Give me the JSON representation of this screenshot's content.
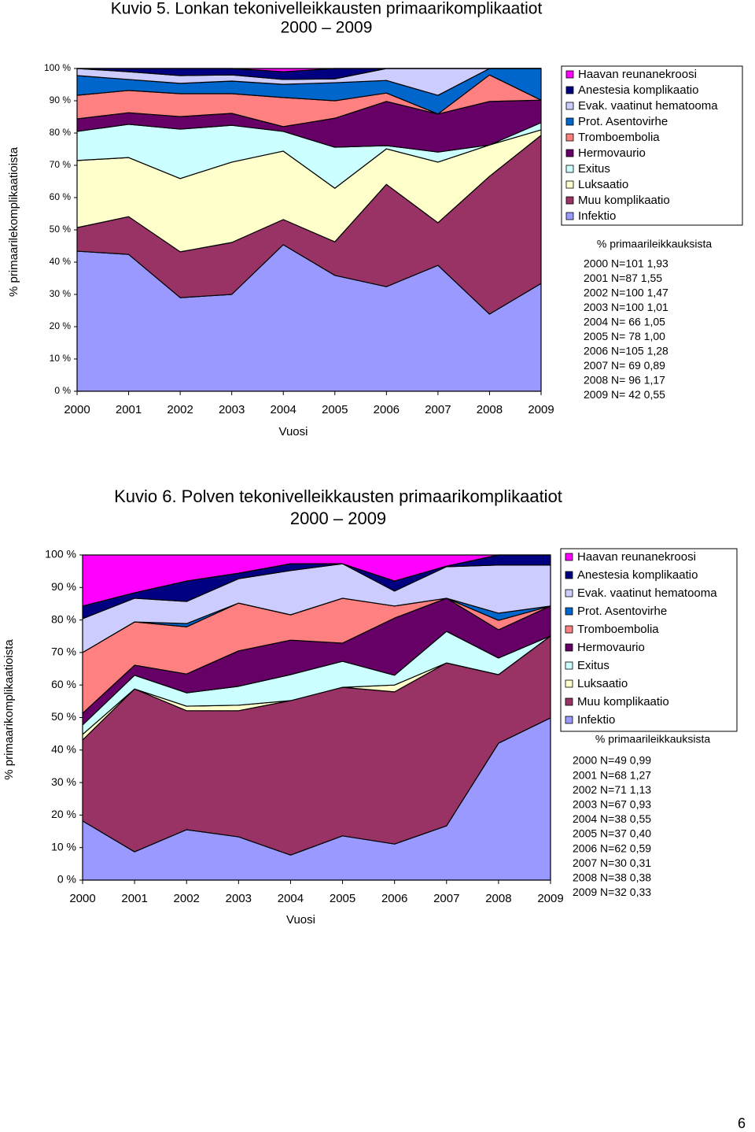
{
  "chart_data": [
    {
      "type": "stacked-area",
      "title": "Kuvio 5. Lonkan tekonivelleikkausten primaarikomplikaatiot",
      "subtitle": "2000 – 2009",
      "x_label": "Vuosi",
      "y_label": "% primaarilekomplikaatioista",
      "categories": [
        "2000",
        "2001",
        "2002",
        "2003",
        "2004",
        "2005",
        "2006",
        "2007",
        "2008",
        "2009"
      ],
      "ylim": [
        0,
        100
      ],
      "yticks": [
        {
          "value": 0,
          "label": "0 %"
        },
        {
          "value": 10,
          "label": "10 %"
        },
        {
          "value": 20,
          "label": "20 %"
        },
        {
          "value": 30,
          "label": "30 %"
        },
        {
          "value": 40,
          "label": "40 %"
        },
        {
          "value": 50,
          "label": "50 %"
        },
        {
          "value": 60,
          "label": "60 %"
        },
        {
          "value": 70,
          "label": "70 %"
        },
        {
          "value": 80,
          "label": "80 %"
        },
        {
          "value": 90,
          "label": "90 %"
        },
        {
          "value": 100,
          "label": "100 %"
        }
      ],
      "legend": "right",
      "series": [
        {
          "name": "Haavan reunanekroosi",
          "color": "#ff00ff",
          "values": [
            0,
            0,
            0,
            0,
            1.0,
            0,
            0,
            0,
            0,
            0
          ]
        },
        {
          "name": "Anestesia komplikaatio",
          "color": "#000080",
          "values": [
            0,
            1.0,
            2.2,
            2.0,
            2.4,
            3.2,
            0,
            0,
            0,
            0
          ]
        },
        {
          "name": "Evak. vaatinut hematooma",
          "color": "#ccccff",
          "values": [
            2.2,
            2.4,
            2.4,
            1.9,
            1.5,
            1.2,
            3.7,
            8.3,
            0,
            0
          ]
        },
        {
          "name": "Prot. Asentovirhe",
          "color": "#0066cc",
          "values": [
            6.1,
            3.4,
            3.2,
            3.9,
            4.1,
            5.6,
            3.9,
            5.8,
            2.0,
            9.8
          ]
        },
        {
          "name": "Tromboembolia",
          "color": "#ff8080",
          "values": [
            7.3,
            6.9,
            7.1,
            6.1,
            9.0,
            5.4,
            2.6,
            0,
            8.2,
            0
          ]
        },
        {
          "name": "Hermovaurio",
          "color": "#660066",
          "values": [
            3.9,
            3.6,
            3.9,
            3.7,
            1.5,
            9.0,
            13.7,
            11.8,
            13.5,
            7.0
          ]
        },
        {
          "name": "Exitus",
          "color": "#ccffff",
          "values": [
            9.0,
            10.3,
            15.3,
            11.4,
            6.1,
            12.7,
            1.0,
            3.1,
            0,
            2.2
          ]
        },
        {
          "name": "Luksaatio",
          "color": "#ffffcc",
          "values": [
            20.8,
            18.3,
            22.7,
            24.9,
            21.2,
            16.6,
            11.0,
            18.8,
            9.7,
            1.7
          ]
        },
        {
          "name": "Muu komplikaatio",
          "color": "#993366",
          "values": [
            7.3,
            11.7,
            14.2,
            16.1,
            7.8,
            10.4,
            31.7,
            13.2,
            42.7,
            45.9
          ]
        },
        {
          "name": "Infektio",
          "color": "#9999ff",
          "values": [
            43.4,
            42.4,
            29.0,
            30.0,
            45.4,
            35.9,
            32.4,
            39.0,
            23.9,
            33.4
          ]
        }
      ],
      "notes_title": "% primaarileikkauksista",
      "notes": [
        "2000 N=101 1,93",
        "2001 N=87 1,55",
        "2002 N=100 1,47",
        "2003 N=100 1,01",
        "2004 N= 66 1,05",
        "2005 N= 78 1,00",
        "2006 N=105 1,28",
        "2007 N= 69 0,89",
        "2008 N= 96 1,17",
        "2009 N= 42 0,55"
      ]
    },
    {
      "type": "stacked-area",
      "title": "Kuvio 6. Polven tekonivelleikkausten primaarikomplikaatiot",
      "subtitle": "2000 – 2009",
      "x_label": "Vuosi",
      "y_label": "% primaarikomplikaatioista",
      "categories": [
        "2000",
        "2001",
        "2002",
        "2003",
        "2004",
        "2005",
        "2006",
        "2007",
        "2008",
        "2009"
      ],
      "ylim": [
        0,
        100
      ],
      "yticks": [
        {
          "value": 0,
          "label": "0 %"
        },
        {
          "value": 10,
          "label": "10 %"
        },
        {
          "value": 20,
          "label": "20 %"
        },
        {
          "value": 30,
          "label": "30 %"
        },
        {
          "value": 40,
          "label": "40 %"
        },
        {
          "value": 50,
          "label": "50 %"
        },
        {
          "value": 60,
          "label": "60 %"
        },
        {
          "value": 70,
          "label": "70 %"
        },
        {
          "value": 80,
          "label": "80 %"
        },
        {
          "value": 90,
          "label": "90 %"
        },
        {
          "value": 100,
          "label": "100 %"
        }
      ],
      "legend": "right",
      "series": [
        {
          "name": "Haavan reunanekroosi",
          "color": "#ff00ff",
          "values": [
            15.7,
            11.6,
            8.0,
            5.6,
            2.7,
            2.7,
            8.0,
            3.4,
            0,
            0
          ]
        },
        {
          "name": "Anestesia komplikaatio",
          "color": "#000080",
          "values": [
            3.9,
            1.7,
            6.3,
            1.7,
            2.1,
            0,
            3.1,
            0.2,
            3.1,
            3.1
          ]
        },
        {
          "name": "Evak. vaatinut hematooma",
          "color": "#ccccff",
          "values": [
            10.4,
            7.3,
            6.8,
            7.5,
            13.6,
            10.6,
            4.6,
            9.7,
            14.8,
            12.6
          ]
        },
        {
          "name": "Prot. Asentovirhe",
          "color": "#0066cc",
          "values": [
            0,
            0,
            1.0,
            0,
            0,
            0,
            0,
            0,
            2.2,
            0
          ]
        },
        {
          "name": "Tromboembolia",
          "color": "#ff8080",
          "values": [
            18.7,
            13.3,
            14.5,
            14.7,
            7.8,
            13.8,
            3.7,
            0,
            2.9,
            0
          ]
        },
        {
          "name": "Hermovaurio",
          "color": "#660066",
          "values": [
            3.6,
            3.1,
            5.8,
            10.9,
            10.6,
            5.6,
            17.6,
            10.2,
            8.7,
            9.2
          ]
        },
        {
          "name": "Exitus",
          "color": "#ccffff",
          "values": [
            2.9,
            4.2,
            4.1,
            5.8,
            8.0,
            8.0,
            3.0,
            9.7,
            5.1,
            0
          ]
        },
        {
          "name": "Luksaatio",
          "color": "#ffffcc",
          "values": [
            1.7,
            0,
            1.4,
            1.7,
            0,
            0,
            2.1,
            0,
            0,
            0
          ]
        },
        {
          "name": "Muu komplikaatio",
          "color": "#993366",
          "values": [
            24.9,
            50.1,
            36.6,
            38.8,
            47.5,
            45.7,
            46.8,
            50.1,
            21.1,
            25.2
          ]
        },
        {
          "name": "Infektio",
          "color": "#9999ff",
          "values": [
            18.2,
            8.7,
            15.5,
            13.3,
            7.7,
            13.6,
            11.1,
            16.7,
            42.1,
            49.9
          ]
        }
      ],
      "notes_title": "% primaarileikkauksista",
      "notes": [
        "2000 N=49 0,99",
        "2001 N=68 1,27",
        "2002 N=71 1,13",
        "2003 N=67 0,93",
        "2004 N=38 0,55",
        "2005 N=37 0,40",
        "2006 N=62 0,59",
        "2007 N=30 0,31",
        "2008 N=38 0,38",
        "2009 N=32 0,33"
      ]
    }
  ],
  "page_number": "6"
}
